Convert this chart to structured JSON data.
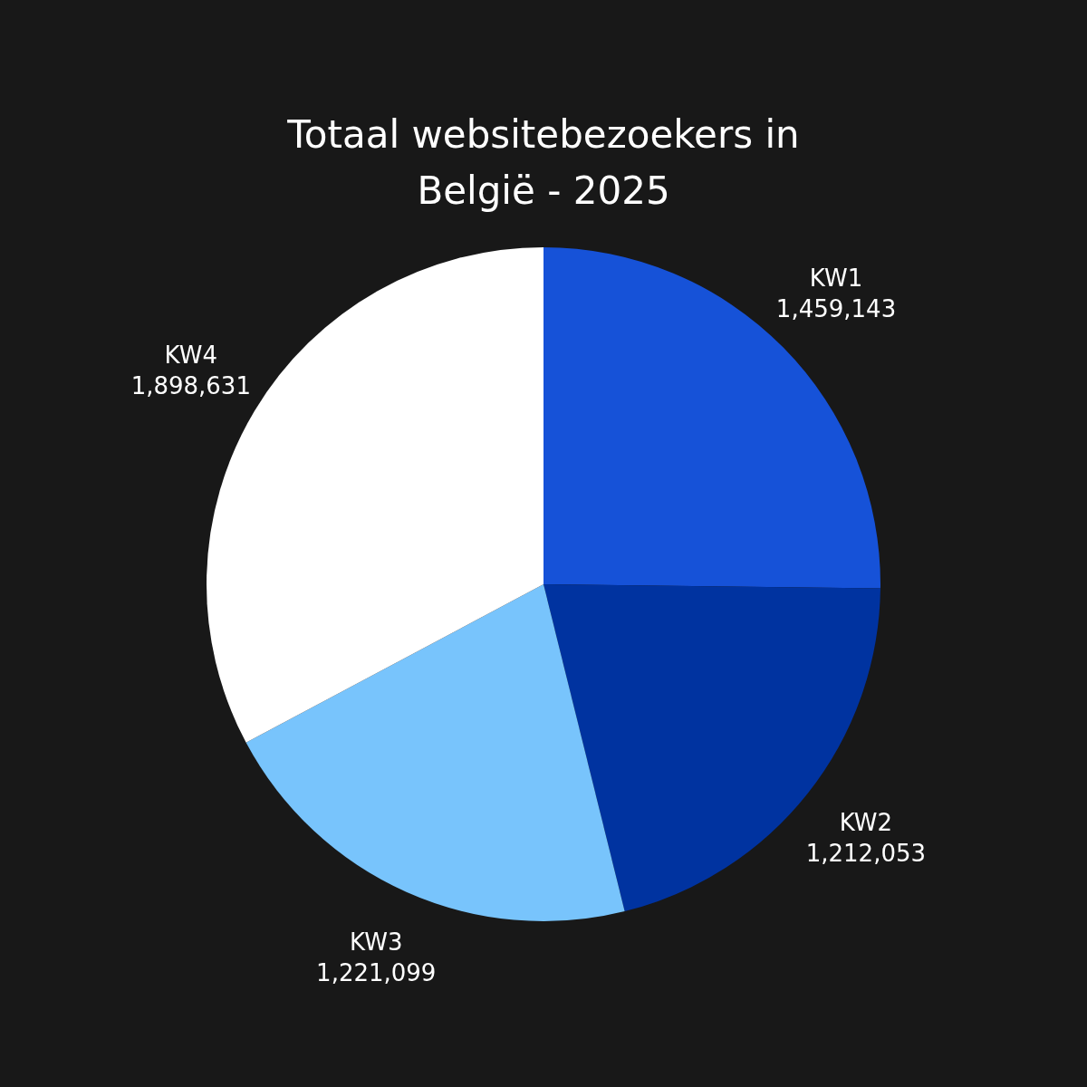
{
  "chart_data": {
    "type": "pie",
    "title": "Totaal websitebezoekers in België - 2025",
    "categories": [
      "KW1",
      "KW2",
      "KW3",
      "KW4"
    ],
    "values": [
      1459143,
      1212053,
      1221099,
      1898631
    ],
    "value_labels": [
      "1,459,143",
      "1,212,053",
      "1,221,099",
      "1,898,631"
    ],
    "colors": [
      "#1652d8",
      "#0033a0",
      "#78c4fc",
      "#ffffff"
    ],
    "legend": false
  }
}
